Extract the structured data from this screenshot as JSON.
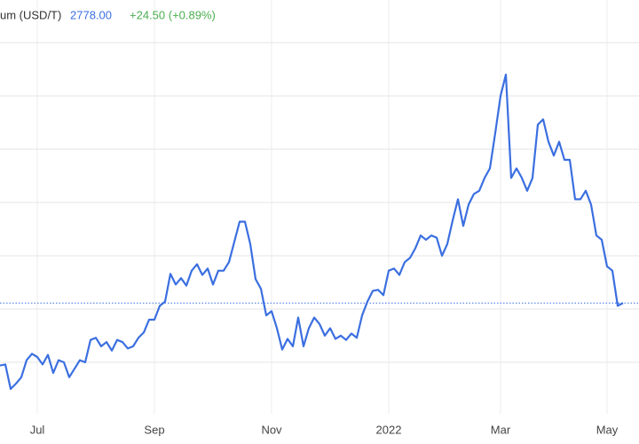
{
  "header": {
    "name": "um (USD/T)",
    "price": "2778.00",
    "change": "+24.50 (+0.89%)"
  },
  "chart_data": {
    "type": "line",
    "categories": [
      null,
      null,
      null,
      null,
      null,
      null,
      null,
      "Jul",
      null,
      null,
      null,
      null,
      null,
      null,
      null,
      null,
      null,
      null,
      null,
      null,
      null,
      null,
      null,
      null,
      null,
      null,
      null,
      null,
      null,
      "Sep",
      null,
      null,
      null,
      null,
      null,
      null,
      null,
      null,
      null,
      null,
      null,
      null,
      null,
      null,
      null,
      null,
      null,
      null,
      null,
      null,
      null,
      "Nov",
      null,
      null,
      null,
      null,
      null,
      null,
      null,
      null,
      null,
      null,
      null,
      null,
      null,
      null,
      null,
      null,
      null,
      null,
      null,
      null,
      null,
      "2022",
      null,
      null,
      null,
      null,
      null,
      null,
      null,
      null,
      null,
      null,
      null,
      null,
      null,
      null,
      null,
      null,
      null,
      null,
      null,
      null,
      "Mar",
      null,
      null,
      null,
      null,
      null,
      null,
      null,
      null,
      null,
      null,
      null,
      null,
      null,
      null,
      null,
      null,
      null,
      null,
      null,
      "May",
      null,
      null,
      null
    ],
    "values": [
      2485,
      2490,
      2375,
      2400,
      2430,
      2510,
      2540,
      2525,
      2490,
      2535,
      2450,
      2510,
      2500,
      2430,
      2470,
      2510,
      2500,
      2605,
      2615,
      2575,
      2595,
      2555,
      2605,
      2595,
      2565,
      2575,
      2615,
      2640,
      2700,
      2700,
      2765,
      2785,
      2915,
      2865,
      2895,
      2860,
      2930,
      2960,
      2910,
      2940,
      2865,
      2930,
      2930,
      2970,
      3065,
      3160,
      3160,
      3055,
      2890,
      2845,
      2720,
      2740,
      2660,
      2560,
      2610,
      2575,
      2710,
      2575,
      2660,
      2710,
      2680,
      2625,
      2660,
      2610,
      2625,
      2605,
      2635,
      2615,
      2720,
      2785,
      2835,
      2840,
      2815,
      2930,
      2940,
      2910,
      2970,
      2990,
      3035,
      3095,
      3075,
      3095,
      3085,
      3000,
      3055,
      3165,
      3265,
      3140,
      3240,
      3290,
      3305,
      3365,
      3410,
      3575,
      3750,
      3850,
      3365,
      3410,
      3365,
      3305,
      3365,
      3615,
      3640,
      3535,
      3470,
      3535,
      3450,
      3450,
      3265,
      3265,
      3305,
      3240,
      3095,
      3075,
      2950,
      2930,
      2765,
      2778
    ],
    "color": "#3b6fe0",
    "ylim": [
      2250,
      4250
    ],
    "yticks": [
      2500,
      2750,
      3000,
      3250,
      3500,
      3750,
      4000
    ],
    "grid": true
  }
}
